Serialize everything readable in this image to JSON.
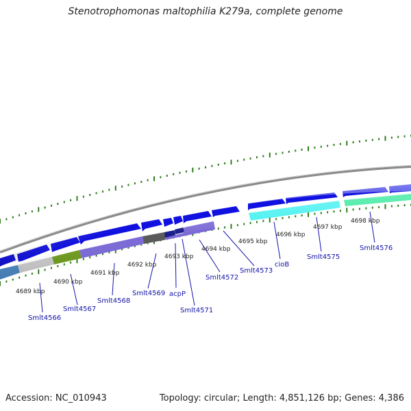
{
  "title": "Stenotrophomonas maltophilia K279a, complete genome",
  "footer": {
    "accession": "Accession: NC_010943",
    "summary": "Topology: circular; Length: 4,851,126 bp; Genes: 4,386"
  },
  "colors": {
    "backbone": "#8a8a8a",
    "tick": "#2e7d1a",
    "gene_label": "#1111aa",
    "forward_gene": "#1010e0",
    "connector": "#1111aa"
  },
  "kbp_labels": [
    "4689 kbp",
    "4690 kbp",
    "4691 kbp",
    "4692 kbp",
    "4693 kbp",
    "4694 kbp",
    "4695 kbp",
    "4696 kbp",
    "4697 kbp",
    "4698 kbp"
  ],
  "gene_labels": [
    "Smlt4566",
    "Smlt4567",
    "Smlt4568",
    "Smlt4569",
    "acpP",
    "Smlt4571",
    "Smlt4572",
    "Smlt4573",
    "cioB",
    "Smlt4575",
    "Smlt4576"
  ],
  "features": {
    "forward": [
      {
        "name": "fwd-gene-1",
        "color": "#1010e0"
      },
      {
        "name": "fwd-gene-2",
        "color": "#1010e0"
      },
      {
        "name": "fwd-gene-3",
        "color": "#1010e0"
      },
      {
        "name": "fwd-gene-4",
        "color": "#1010e0"
      },
      {
        "name": "fwd-gene-5",
        "color": "#1010e0"
      },
      {
        "name": "fwd-gene-6",
        "color": "#1010e0"
      },
      {
        "name": "fwd-gene-7",
        "color": "#1010e0"
      },
      {
        "name": "fwd-gene-8",
        "color": "#1010e0"
      },
      {
        "name": "fwd-gene-9",
        "color": "#1010e0"
      },
      {
        "name": "fwd-gene-10",
        "color": "#1010e0"
      },
      {
        "name": "fwd-gene-11",
        "color": "#1010e0"
      },
      {
        "name": "fwd-gene-12",
        "color": "#1010e0"
      }
    ],
    "category": [
      {
        "name": "cat-steelblue",
        "color": "#4a86c0"
      },
      {
        "name": "cat-lightgray",
        "color": "#c8c8c8"
      },
      {
        "name": "cat-olive",
        "color": "#6e9a1e"
      },
      {
        "name": "cat-slateblue",
        "color": "#7b6ad6"
      },
      {
        "name": "cat-darkgray",
        "color": "#5a5a5a"
      },
      {
        "name": "cat-navy",
        "color": "#151a8a"
      },
      {
        "name": "cat-slateblue-2",
        "color": "#7b6ad6"
      },
      {
        "name": "cat-cyan",
        "color": "#40f0f0"
      },
      {
        "name": "cat-mediumspringgreen",
        "color": "#30e89a"
      }
    ]
  }
}
